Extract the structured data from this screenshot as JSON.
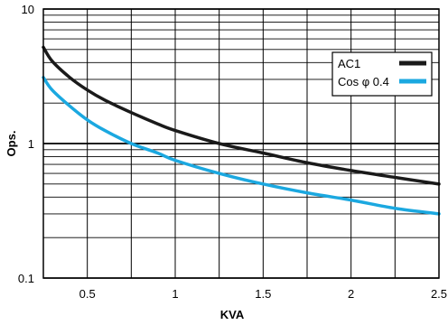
{
  "chart_data": {
    "type": "line",
    "title": "",
    "xlabel": "KVA",
    "ylabel": "Ops.",
    "xlim": [
      0.25,
      2.5
    ],
    "ylim": [
      0.1,
      10
    ],
    "yscale": "log",
    "grid": true,
    "legend_position": "top-right",
    "x_ticks": [
      {
        "value": 0.5,
        "label": "0.5"
      },
      {
        "value": 1,
        "label": "1"
      },
      {
        "value": 1.5,
        "label": "1.5"
      },
      {
        "value": 2,
        "label": "2"
      },
      {
        "value": 2.5,
        "label": "2.5"
      }
    ],
    "y_ticks": [
      {
        "value": 0.1,
        "label": "0.1"
      },
      {
        "value": 1,
        "label": "1"
      },
      {
        "value": 10,
        "label": "10"
      }
    ],
    "series": [
      {
        "name": "AC1",
        "color": "#1a1a1a",
        "x": [
          0.25,
          0.3,
          0.4,
          0.5,
          0.6,
          0.75,
          0.9,
          1.0,
          1.25,
          1.5,
          1.75,
          2.0,
          2.25,
          2.5
        ],
        "y": [
          5.2,
          4.1,
          3.1,
          2.5,
          2.1,
          1.7,
          1.4,
          1.25,
          1.0,
          0.85,
          0.72,
          0.63,
          0.56,
          0.5
        ]
      },
      {
        "name": "Cos φ 0.4",
        "color": "#1ba8e0",
        "x": [
          0.25,
          0.3,
          0.4,
          0.5,
          0.6,
          0.75,
          0.9,
          1.0,
          1.25,
          1.5,
          1.75,
          2.0,
          2.25,
          2.5
        ],
        "y": [
          3.1,
          2.5,
          1.9,
          1.5,
          1.25,
          1.0,
          0.85,
          0.75,
          0.6,
          0.5,
          0.43,
          0.38,
          0.33,
          0.3
        ]
      }
    ]
  }
}
